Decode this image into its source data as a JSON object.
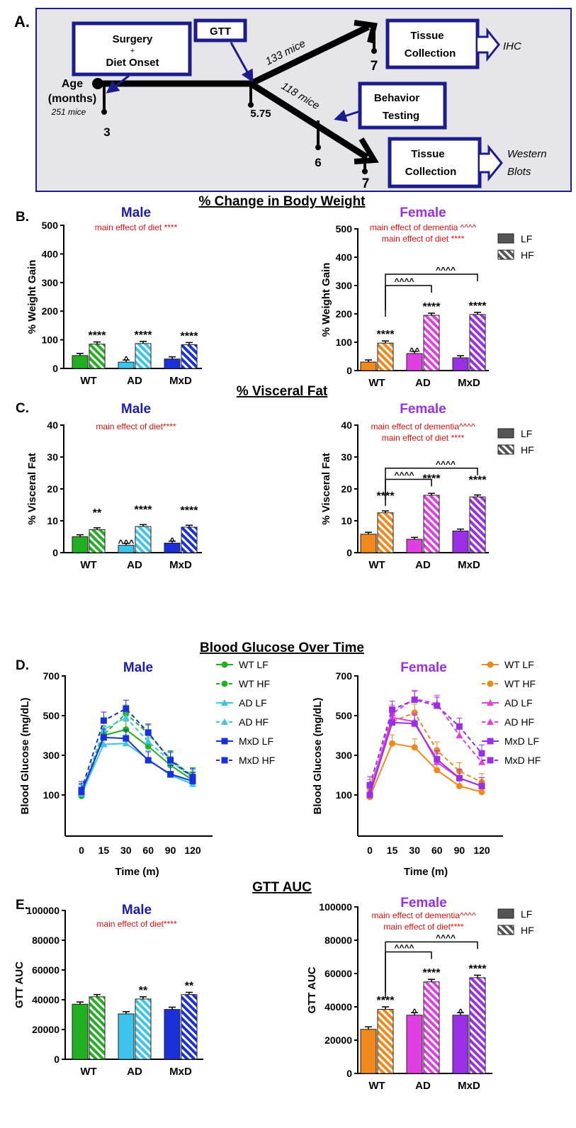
{
  "colors": {
    "male_title": "#1c1ca8",
    "female_title": "#9b30e0",
    "annotation_red": "#e01010",
    "diagram_box": "#1c1c8c",
    "diagram_bg": "#e6e6ea",
    "male": {
      "WT": "#22b022",
      "AD": "#3cc4ec",
      "MxD": "#1a30d8"
    },
    "female": {
      "WT": "#f0881c",
      "AD": "#e040e0",
      "MxD": "#9a30e6"
    }
  },
  "panelA": {
    "label": "A.",
    "surgery_box": {
      "line1": "Surgery",
      "line2": "+",
      "line3": "Diet Onset"
    },
    "gtt_box": "GTT",
    "age_label1": "Age",
    "age_label2": "(months)",
    "start_mice": "251 mice",
    "upper_mice": "133 mice",
    "lower_mice": "118 mice",
    "ticks": [
      "3",
      "5.75",
      "7",
      "6",
      "7"
    ],
    "behavior_box": {
      "line1": "Behavior",
      "line2": "Testing"
    },
    "tissue_upper": {
      "line1": "Tissue",
      "line2": "Collection",
      "output": "IHC"
    },
    "tissue_lower": {
      "line1": "Tissue",
      "line2": "Collection",
      "output1": "Western",
      "output2": "Blots"
    }
  },
  "section_titles": {
    "B": "% Change in Body Weight",
    "C": "% Visceral Fat",
    "D": "Blood Glucose Over Time",
    "E": "GTT AUC"
  },
  "panel_labels": {
    "B": "B.",
    "C": "C.",
    "D": "D.",
    "E": "E."
  },
  "chart_data": [
    {
      "id": "B-male",
      "type": "bar",
      "title": "Male",
      "ylabel": "% Weight Gain",
      "subtitle": [
        "main effect of diet ****"
      ],
      "categories": [
        "WT",
        "AD",
        "MxD"
      ],
      "ylim": [
        0,
        500
      ],
      "yticks": [
        "0",
        "100",
        "200",
        "300",
        "400",
        "500"
      ],
      "series": [
        {
          "name": "LF",
          "values": [
            45,
            22,
            33
          ]
        },
        {
          "name": "HF",
          "values": [
            85,
            87,
            83
          ]
        }
      ],
      "annotations": [
        {
          "cat": 0,
          "bar": 1,
          "text": "****"
        },
        {
          "cat": 1,
          "bar": 0,
          "text": "^"
        },
        {
          "cat": 1,
          "bar": 1,
          "text": "****"
        },
        {
          "cat": 2,
          "bar": 1,
          "text": "****"
        }
      ],
      "brackets": [],
      "legend": null
    },
    {
      "id": "B-female",
      "type": "bar",
      "title": "Female",
      "ylabel": "% Weight Gain",
      "subtitle": [
        "main effect of dementia ^^^^",
        "main effect of diet ****"
      ],
      "categories": [
        "WT",
        "AD",
        "MxD"
      ],
      "ylim": [
        0,
        500
      ],
      "yticks": [
        "0",
        "100",
        "200",
        "300",
        "400",
        "500"
      ],
      "series": [
        {
          "name": "LF",
          "values": [
            30,
            60,
            45
          ]
        },
        {
          "name": "HF",
          "values": [
            97,
            195,
            198
          ]
        }
      ],
      "annotations": [
        {
          "cat": 0,
          "bar": 1,
          "text": "****"
        },
        {
          "cat": 1,
          "bar": 0,
          "text": "^^"
        },
        {
          "cat": 1,
          "bar": 1,
          "text": "****"
        },
        {
          "cat": 2,
          "bar": 1,
          "text": "****"
        }
      ],
      "brackets": [
        {
          "from": 0,
          "to": 1,
          "text": "^^^^",
          "level": 300
        },
        {
          "from": 0,
          "to": 2,
          "text": "^^^^",
          "level": 340
        }
      ],
      "legend": "top-right"
    },
    {
      "id": "C-male",
      "type": "bar",
      "title": "Male",
      "ylabel": "% Visceral Fat",
      "subtitle": [
        "main effect of diet****"
      ],
      "categories": [
        "WT",
        "AD",
        "MxD"
      ],
      "ylim": [
        0,
        40
      ],
      "yticks": [
        "0",
        "10",
        "20",
        "30",
        "40"
      ],
      "series": [
        {
          "name": "LF",
          "values": [
            5,
            2.3,
            3
          ]
        },
        {
          "name": "HF",
          "values": [
            7.2,
            8.2,
            8
          ]
        }
      ],
      "annotations": [
        {
          "cat": 0,
          "bar": 1,
          "text": "**"
        },
        {
          "cat": 1,
          "bar": 0,
          "text": "^^^"
        },
        {
          "cat": 1,
          "bar": 1,
          "text": "****"
        },
        {
          "cat": 2,
          "bar": 0,
          "text": "^"
        },
        {
          "cat": 2,
          "bar": 1,
          "text": "****"
        }
      ],
      "brackets": [],
      "legend": null
    },
    {
      "id": "C-female",
      "type": "bar",
      "title": "Female",
      "ylabel": "% Visceral Fat",
      "subtitle": [
        "main effect of dementia^^^^",
        "main effect of diet ****"
      ],
      "categories": [
        "WT",
        "AD",
        "MxD"
      ],
      "ylim": [
        0,
        40
      ],
      "yticks": [
        "0",
        "10",
        "20",
        "30",
        "40"
      ],
      "series": [
        {
          "name": "LF",
          "values": [
            5.8,
            4.2,
            6.8
          ]
        },
        {
          "name": "HF",
          "values": [
            12.5,
            18,
            17.5
          ]
        }
      ],
      "annotations": [
        {
          "cat": 0,
          "bar": 1,
          "text": "****"
        },
        {
          "cat": 1,
          "bar": 1,
          "text": "****"
        },
        {
          "cat": 2,
          "bar": 1,
          "text": "****"
        }
      ],
      "brackets": [
        {
          "from": 0,
          "to": 1,
          "text": "^^^^",
          "level": 23
        },
        {
          "from": 0,
          "to": 2,
          "text": "^^^^",
          "level": 26.5
        }
      ],
      "legend": "top-right"
    },
    {
      "id": "D-male",
      "type": "line",
      "title": "Male",
      "ylabel": "Blood Glucose (mg/dL)",
      "xlabel": "Time (m)",
      "x": [
        "0",
        "15",
        "30",
        "60",
        "90",
        "120"
      ],
      "ylim": [
        0,
        700
      ],
      "yticks": [
        "100",
        "300",
        "500",
        "700"
      ],
      "series": [
        {
          "name": "WT LF",
          "group": "WT",
          "diet": "LF",
          "marker": "circle",
          "values": [
            95,
            400,
            430,
            345,
            250,
            175
          ]
        },
        {
          "name": "WT HF",
          "group": "WT",
          "diet": "HF",
          "marker": "circle",
          "values": [
            110,
            405,
            510,
            410,
            280,
            195
          ]
        },
        {
          "name": "AD LF",
          "group": "AD",
          "diet": "LF",
          "marker": "triangle",
          "values": [
            105,
            355,
            360,
            280,
            200,
            155
          ]
        },
        {
          "name": "AD HF",
          "group": "AD",
          "diet": "HF",
          "marker": "triangle",
          "values": [
            110,
            430,
            490,
            370,
            270,
            185
          ]
        },
        {
          "name": "MxD LF",
          "group": "MxD",
          "diet": "LF",
          "marker": "square",
          "values": [
            115,
            390,
            385,
            275,
            205,
            170
          ]
        },
        {
          "name": "MxD HF",
          "group": "MxD",
          "diet": "HF",
          "marker": "square",
          "values": [
            125,
            475,
            535,
            415,
            275,
            190
          ]
        }
      ],
      "legend": "right"
    },
    {
      "id": "D-female",
      "type": "line",
      "title": "Female",
      "ylabel": "Blood Glucose (mg/dL)",
      "xlabel": "Time (m)",
      "x": [
        "0",
        "15",
        "30",
        "60",
        "90",
        "120"
      ],
      "ylim": [
        0,
        700
      ],
      "yticks": [
        "100",
        "300",
        "500",
        "700"
      ],
      "series": [
        {
          "name": "WT LF",
          "group": "WT",
          "diet": "LF",
          "marker": "circle",
          "values": [
            90,
            360,
            340,
            225,
            145,
            115
          ]
        },
        {
          "name": "WT HF",
          "group": "WT",
          "diet": "HF",
          "marker": "circle",
          "values": [
            135,
            470,
            515,
            325,
            220,
            165
          ]
        },
        {
          "name": "AD LF",
          "group": "AD",
          "diet": "LF",
          "marker": "triangle",
          "values": [
            120,
            490,
            470,
            265,
            185,
            145
          ]
        },
        {
          "name": "AD HF",
          "group": "AD",
          "diet": "HF",
          "marker": "triangle",
          "values": [
            110,
            510,
            585,
            560,
            400,
            265
          ]
        },
        {
          "name": "MxD LF",
          "group": "MxD",
          "diet": "LF",
          "marker": "square",
          "values": [
            100,
            465,
            460,
            280,
            185,
            145
          ]
        },
        {
          "name": "MxD HF",
          "group": "MxD",
          "diet": "HF",
          "marker": "square",
          "values": [
            150,
            530,
            580,
            550,
            445,
            310
          ]
        }
      ],
      "legend": "right"
    },
    {
      "id": "E-male",
      "type": "bar",
      "title": "Male",
      "ylabel": "GTT AUC",
      "subtitle": [
        "main effect of diet****"
      ],
      "categories": [
        "WT",
        "AD",
        "MxD"
      ],
      "ylim": [
        0,
        100000
      ],
      "yticks": [
        "0",
        "20000",
        "40000",
        "60000",
        "80000",
        "100000"
      ],
      "series": [
        {
          "name": "LF",
          "values": [
            37000,
            30500,
            33500
          ]
        },
        {
          "name": "HF",
          "values": [
            42000,
            40500,
            43500
          ]
        }
      ],
      "annotations": [
        {
          "cat": 1,
          "bar": 1,
          "text": "**"
        },
        {
          "cat": 2,
          "bar": 1,
          "text": "**"
        }
      ],
      "brackets": [],
      "legend": null
    },
    {
      "id": "E-female",
      "type": "bar",
      "title": "Female",
      "ylabel": "GTT AUC",
      "subtitle": [
        "main effect of dementia^^^^",
        "main effect of diet****"
      ],
      "categories": [
        "WT",
        "AD",
        "MxD"
      ],
      "ylim": [
        0,
        100000
      ],
      "yticks": [
        "0",
        "20000",
        "40000",
        "60000",
        "80000",
        "100000"
      ],
      "series": [
        {
          "name": "LF",
          "values": [
            26500,
            35000,
            35000
          ]
        },
        {
          "name": "HF",
          "values": [
            38500,
            55000,
            57500
          ]
        }
      ],
      "annotations": [
        {
          "cat": 0,
          "bar": 1,
          "text": "****"
        },
        {
          "cat": 1,
          "bar": 0,
          "text": "^"
        },
        {
          "cat": 1,
          "bar": 1,
          "text": "****"
        },
        {
          "cat": 2,
          "bar": 0,
          "text": "^"
        },
        {
          "cat": 2,
          "bar": 1,
          "text": "****"
        }
      ],
      "brackets": [
        {
          "from": 0,
          "to": 1,
          "text": "^^^^",
          "level": 73000
        },
        {
          "from": 0,
          "to": 2,
          "text": "^^^^",
          "level": 79000
        }
      ],
      "legend": "top-right"
    }
  ]
}
